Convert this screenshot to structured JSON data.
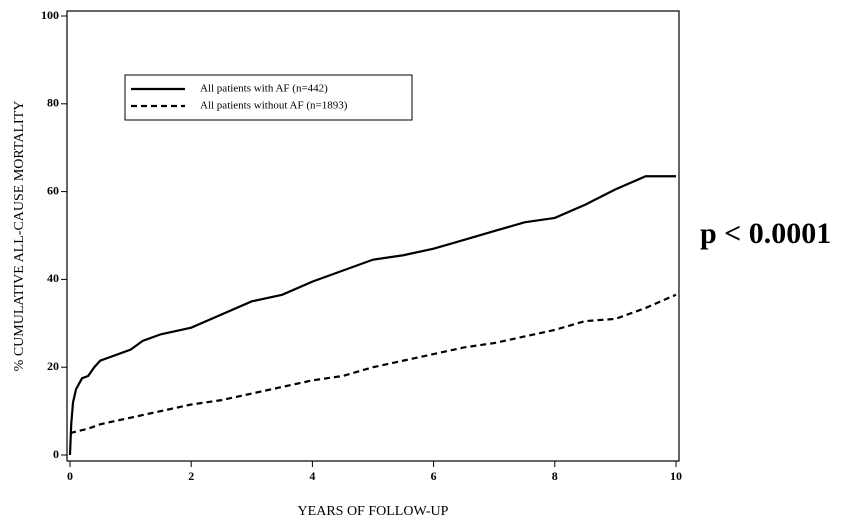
{
  "chart_data": {
    "type": "line",
    "xlabel": "YEARS OF FOLLOW-UP",
    "ylabel": "% CUMULATIVE ALL-CAUSE MORTALITY",
    "annotation": "p < 0.0001",
    "xlim": [
      0,
      10
    ],
    "xticks": [
      0,
      2,
      4,
      6,
      8,
      10
    ],
    "ylim": [
      0,
      100
    ],
    "yticks": [
      0,
      20,
      40,
      60,
      80,
      100
    ],
    "series": [
      {
        "name": "All patients with AF (n=442)",
        "color": "#000000",
        "line_style": "solid",
        "x": [
          0,
          0.02,
          0.05,
          0.1,
          0.2,
          0.3,
          0.4,
          0.5,
          0.7,
          1,
          1.2,
          1.5,
          2,
          2.5,
          3,
          3.5,
          4,
          4.5,
          5,
          5.5,
          6,
          6.5,
          7,
          7.5,
          8,
          8.5,
          9,
          9.5,
          10
        ],
        "values": [
          0,
          7,
          12,
          15,
          17.5,
          18,
          20,
          21.5,
          22.5,
          24,
          26,
          27.5,
          29,
          32,
          35,
          36.5,
          39.5,
          42,
          44.5,
          45.5,
          47,
          49,
          51,
          53,
          54,
          57,
          60.5,
          63.5,
          63.5
        ]
      },
      {
        "name": "All patients without AF (n=1893)",
        "color": "#000000",
        "line_style": "dashed",
        "x": [
          0,
          0.3,
          0.5,
          1,
          1.5,
          2,
          2.5,
          3,
          3.5,
          4,
          4.5,
          5,
          5.5,
          6,
          6.5,
          7,
          7.5,
          8,
          8.5,
          9,
          9.5,
          10
        ],
        "values": [
          5,
          6,
          7,
          8.5,
          10,
          11.5,
          12.5,
          14,
          15.5,
          17,
          18,
          20,
          21.5,
          23,
          24.5,
          25.5,
          27,
          28.5,
          30.5,
          31,
          33.5,
          36.5
        ]
      }
    ]
  }
}
